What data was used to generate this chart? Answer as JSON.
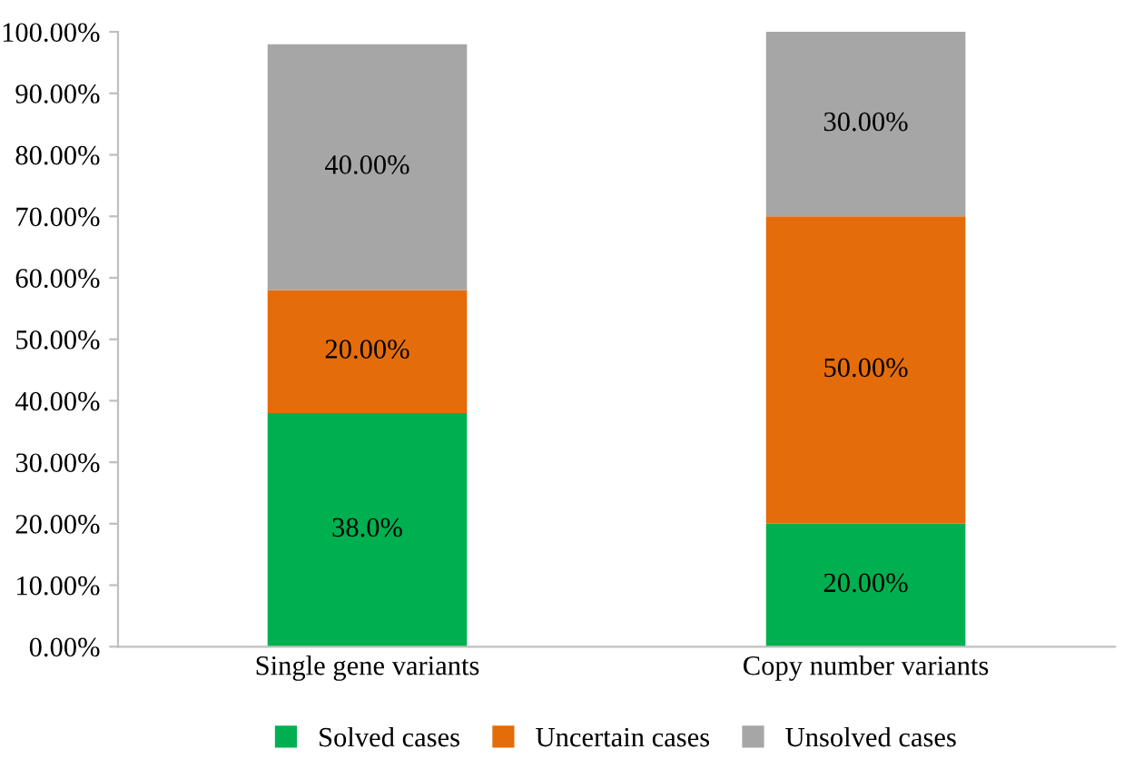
{
  "chart_data": {
    "type": "bar",
    "stacked": true,
    "categories": [
      "Single gene variants",
      "Copy number variants"
    ],
    "series": [
      {
        "name": "Solved cases",
        "color": "#00b050",
        "values": [
          38.0,
          20.0
        ],
        "value_labels": [
          "38.0%",
          "20.00%"
        ]
      },
      {
        "name": "Uncertain cases",
        "color": "#e46c0a",
        "values": [
          20.0,
          50.0
        ],
        "value_labels": [
          "20.00%",
          "50.00%"
        ]
      },
      {
        "name": "Unsolved cases",
        "color": "#a6a6a6",
        "values": [
          40.0,
          30.0
        ],
        "value_labels": [
          "40.00%",
          "30.00%"
        ]
      }
    ],
    "ylim": [
      0,
      100
    ],
    "yticks": [
      {
        "value": 0,
        "label": "0.00%"
      },
      {
        "value": 10,
        "label": "10.00%"
      },
      {
        "value": 20,
        "label": "20.00%"
      },
      {
        "value": 30,
        "label": "30.00%"
      },
      {
        "value": 40,
        "label": "40.00%"
      },
      {
        "value": 50,
        "label": "50.00%"
      },
      {
        "value": 60,
        "label": "60.00%"
      },
      {
        "value": 70,
        "label": "70.00%"
      },
      {
        "value": 80,
        "label": "80.00%"
      },
      {
        "value": 90,
        "label": "90.00%"
      },
      {
        "value": 100,
        "label": "100.00%"
      }
    ],
    "grid": false,
    "legend": "bottom"
  }
}
